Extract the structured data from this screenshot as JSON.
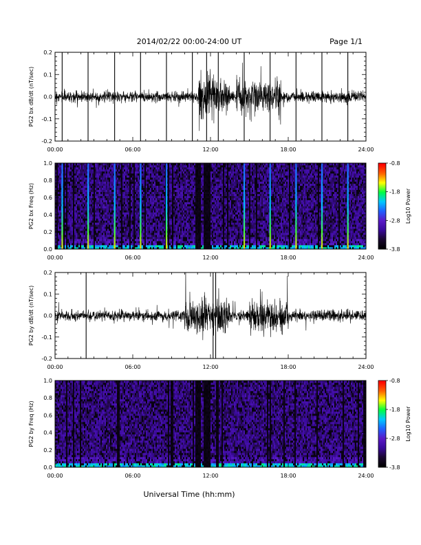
{
  "header": {
    "title": "2014/02/22  00:00-24:00 UT",
    "page": "Page 1/1"
  },
  "footer": {
    "xlabel": "Universal Time (hh:mm)"
  },
  "colors": {
    "trace": "#000000",
    "colormap": [
      "#000000",
      "#1a0830",
      "#3a0a9c",
      "#5a1ac8",
      "#2060ff",
      "#00c8ff",
      "#00ff40",
      "#ffff00",
      "#ff6000",
      "#ff0000"
    ]
  },
  "chart_data": [
    {
      "type": "line",
      "ylabel": "PG2 bx dB/dt (nT/sec)",
      "xlim": [
        0,
        24
      ],
      "ylim": [
        -0.2,
        0.2
      ],
      "x_ticks": [
        "00:00",
        "06:00",
        "12:00",
        "18:00",
        "24:00"
      ],
      "y_ticks": [
        "-0.2",
        "-0.1",
        "0.0",
        "0.1",
        "0.2"
      ],
      "noise_profile": {
        "base_amplitude": 0.012,
        "active_intervals": [
          [
            11.0,
            13.5
          ],
          [
            14.0,
            17.5
          ]
        ],
        "active_amplitude": 0.04
      },
      "spikes_hours": [
        0.55,
        2.55,
        4.6,
        6.6,
        8.6,
        10.6,
        11.7,
        12.6,
        14.6,
        16.6,
        18.6,
        20.6,
        22.6
      ]
    },
    {
      "type": "heatmap",
      "ylabel": "PG2 bx Freq (Hz)",
      "xlim": [
        0,
        24
      ],
      "ylim": [
        0,
        1.0
      ],
      "x_ticks": [
        "00:00",
        "06:00",
        "12:00",
        "18:00",
        "24:00"
      ],
      "y_ticks": [
        "0.0",
        "0.2",
        "0.4",
        "0.6",
        "0.8",
        "1.0"
      ],
      "colorbar": {
        "label": "Log10 Power",
        "range": [
          -3.8,
          -0.8
        ],
        "ticks": [
          "-0.8",
          "-1.8",
          "-2.8",
          "-3.8"
        ]
      },
      "spike_lines_hours": [
        0.55,
        2.55,
        4.6,
        6.6,
        8.6,
        14.6,
        16.6,
        18.6,
        20.6,
        22.6
      ],
      "dark_bands_hours": [
        [
          10.8,
          11.3
        ],
        [
          11.5,
          12.0
        ]
      ]
    },
    {
      "type": "line",
      "ylabel": "PG2 by dB/dt (nT/sec)",
      "xlim": [
        0,
        24
      ],
      "ylim": [
        -0.2,
        0.2
      ],
      "x_ticks": [
        "00:00",
        "06:00",
        "12:00",
        "18:00",
        "24:00"
      ],
      "y_ticks": [
        "-0.2",
        "-0.1",
        "0.0",
        "0.1",
        "0.2"
      ],
      "noise_profile": {
        "base_amplitude": 0.012,
        "active_intervals": [
          [
            10.0,
            13.5
          ],
          [
            15.0,
            18.0
          ]
        ],
        "active_amplitude": 0.04
      },
      "spikes_hours": [
        2.4,
        12.2,
        12.4
      ]
    },
    {
      "type": "heatmap",
      "ylabel": "PG2 by Freq (Hz)",
      "xlim": [
        0,
        24
      ],
      "ylim": [
        0,
        1.0
      ],
      "x_ticks": [
        "00:00",
        "06:00",
        "12:00",
        "18:00",
        "24:00"
      ],
      "y_ticks": [
        "0.0",
        "0.2",
        "0.4",
        "0.6",
        "0.8",
        "1.0"
      ],
      "colorbar": {
        "label": "Log10 Power",
        "range": [
          -3.8,
          -0.8
        ],
        "ticks": [
          "-0.8",
          "-1.8",
          "-2.8",
          "-3.8"
        ]
      },
      "spike_lines_hours": [],
      "dark_bands_hours": [
        [
          10.8,
          11.3
        ],
        [
          11.5,
          12.0
        ]
      ]
    }
  ]
}
